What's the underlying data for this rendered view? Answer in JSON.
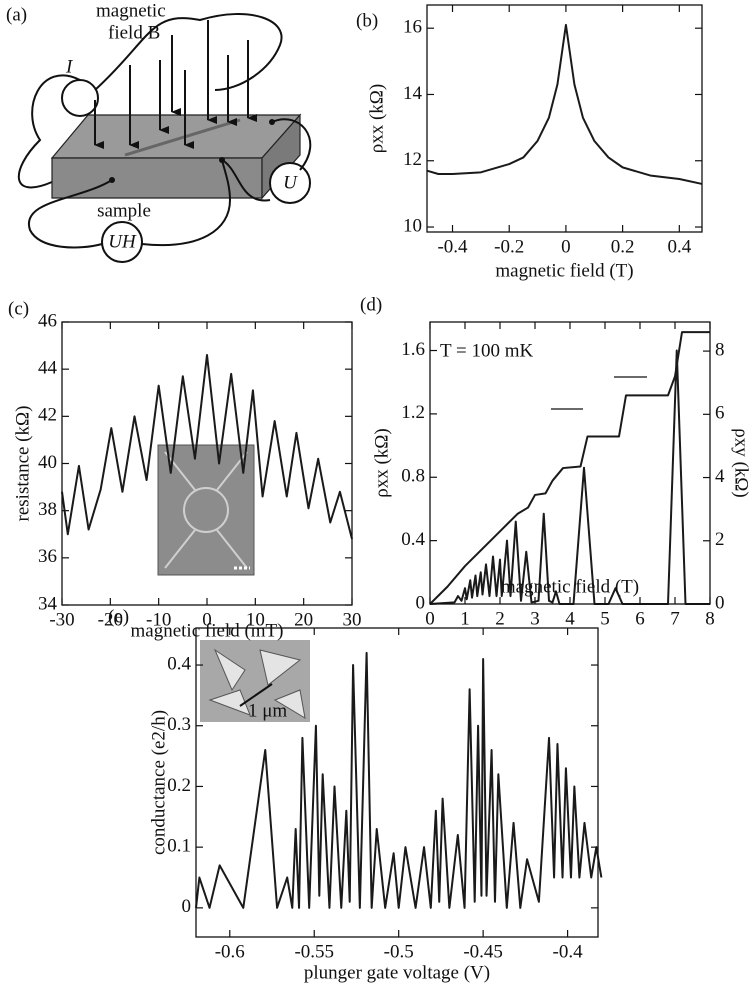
{
  "diagram": {
    "label": "(a)",
    "field_line1": "magnetic",
    "field_line2": "field B",
    "current": "I",
    "voltage": "U",
    "sample": "sample",
    "hall_voltage": "UH"
  },
  "chart_data": [
    {
      "type": "line",
      "label": "(b)",
      "xlabel": "magnetic field (T)",
      "ylabel": "ρxx (kΩ)",
      "color": "#1a1a1a",
      "x": [
        -0.49,
        -0.45,
        -0.4,
        -0.3,
        -0.2,
        -0.15,
        -0.1,
        -0.06,
        -0.03,
        -0.01,
        0,
        0.01,
        0.03,
        0.06,
        0.1,
        0.15,
        0.2,
        0.3,
        0.4,
        0.48
      ],
      "values": [
        11.7,
        11.6,
        11.6,
        11.65,
        11.9,
        12.1,
        12.6,
        13.3,
        14.3,
        15.5,
        16.1,
        15.5,
        14.3,
        13.3,
        12.6,
        12.1,
        11.8,
        11.55,
        11.45,
        11.3
      ],
      "xlim": [
        -0.49,
        0.48
      ],
      "ylim": [
        9.85,
        16.7
      ],
      "xticks": [
        -0.4,
        -0.2,
        0,
        0.2,
        0.4
      ],
      "yticks": [
        10,
        12,
        14,
        16
      ]
    },
    {
      "type": "line",
      "label": "(c)",
      "xlabel": "magnetic field (mT)",
      "ylabel": "resistance (kΩ)",
      "color": "#1a1a1a",
      "x": [
        -30,
        -28.8,
        -26.5,
        -24.5,
        -22,
        -19.8,
        -17.5,
        -15,
        -12.5,
        -10,
        -7.5,
        -5,
        -2.5,
        0,
        2.5,
        5,
        7.5,
        9.5,
        11.5,
        14,
        16.5,
        18.5,
        21,
        23,
        25.5,
        27.5,
        30
      ],
      "values": [
        38.8,
        37.0,
        39.9,
        37.2,
        38.9,
        41.5,
        38.8,
        42.0,
        39.3,
        43.3,
        39.6,
        43.7,
        40.2,
        44.6,
        40.0,
        43.8,
        39.6,
        43.1,
        38.6,
        41.8,
        38.6,
        41.3,
        38.1,
        40.2,
        37.5,
        38.8,
        36.8
      ],
      "xlim": [
        -30,
        30
      ],
      "ylim": [
        34,
        46
      ],
      "xticks": [
        -30,
        -20,
        -10,
        0,
        10,
        20,
        30
      ],
      "yticks": [
        34,
        36,
        38,
        40,
        42,
        44,
        46
      ]
    },
    {
      "type": "line",
      "label": "(d)",
      "xlabel": "magnetic field (T)",
      "ylabel": "ρxx (kΩ)",
      "y2label": "ρxy (kΩ)",
      "annotation": "T = 100 mK",
      "series": [
        {
          "color": "#1a1a1a",
          "x": [
            0,
            0.7,
            0.8,
            0.9,
            1.0,
            1.05,
            1.15,
            1.2,
            1.3,
            1.35,
            1.45,
            1.5,
            1.6,
            1.7,
            1.8,
            1.9,
            2.0,
            2.05,
            2.2,
            2.3,
            2.45,
            2.6,
            2.75,
            2.9,
            3.1,
            3.25,
            3.4,
            3.5,
            3.6,
            3.7,
            4.1,
            4.4,
            4.7,
            5.1,
            5.3,
            5.5,
            6.8,
            7.05,
            7.3,
            8
          ],
          "values": [
            0,
            0.01,
            0.05,
            0.02,
            0.1,
            0.03,
            0.15,
            0.04,
            0.18,
            0.05,
            0.2,
            0.06,
            0.25,
            0.05,
            0.3,
            0.05,
            0.28,
            0.05,
            0.4,
            0.05,
            0.52,
            0.02,
            0.33,
            0.01,
            0.02,
            0.57,
            0.02,
            0.01,
            0.08,
            0,
            0,
            0.86,
            0,
            0,
            0.1,
            0,
            0,
            1.6,
            0,
            0
          ]
        },
        {
          "color": "#1a1a1a",
          "axis": "y2",
          "x": [
            0,
            0.5,
            1,
            1.5,
            2,
            2.5,
            2.8,
            3,
            3.3,
            3.5,
            3.8,
            4.3,
            4.5,
            5.4,
            5.6,
            6.8,
            7.0,
            7.2,
            8
          ],
          "values": [
            0,
            0.55,
            1.2,
            1.75,
            2.3,
            2.85,
            3.05,
            3.45,
            3.5,
            3.9,
            4.3,
            4.35,
            5.3,
            5.3,
            6.6,
            6.6,
            7.2,
            8.6,
            8.6
          ]
        }
      ],
      "xlim": [
        0,
        8
      ],
      "ylim": [
        0,
        1.78
      ],
      "y2lim": [
        0,
        8.92
      ],
      "xticks": [
        0,
        1,
        2,
        3,
        4,
        5,
        6,
        7,
        8
      ],
      "yticks": [
        0,
        0.4,
        0.8,
        1.2,
        1.6
      ],
      "y2ticks": [
        0,
        2,
        4,
        6,
        8
      ]
    },
    {
      "type": "line",
      "label": "(e)",
      "xlabel": "plunger gate voltage (V)",
      "ylabel": "conductance (e2/h)",
      "inset_label": "1 μm",
      "color": "#1a1a1a",
      "x": [
        -0.62,
        -0.618,
        -0.612,
        -0.606,
        -0.592,
        -0.579,
        -0.572,
        -0.566,
        -0.563,
        -0.561,
        -0.559,
        -0.557,
        -0.553,
        -0.549,
        -0.547,
        -0.545,
        -0.541,
        -0.538,
        -0.534,
        -0.531,
        -0.529,
        -0.527,
        -0.523,
        -0.519,
        -0.516,
        -0.513,
        -0.508,
        -0.503,
        -0.5,
        -0.496,
        -0.49,
        -0.485,
        -0.481,
        -0.478,
        -0.476,
        -0.474,
        -0.47,
        -0.465,
        -0.461,
        -0.458,
        -0.455,
        -0.453,
        -0.451,
        -0.45,
        -0.448,
        -0.445,
        -0.443,
        -0.441,
        -0.436,
        -0.432,
        -0.428,
        -0.424,
        -0.417,
        -0.411,
        -0.408,
        -0.406,
        -0.403,
        -0.401,
        -0.398,
        -0.396,
        -0.393,
        -0.39,
        -0.386,
        -0.383,
        -0.38
      ],
      "values": [
        0,
        0.05,
        0,
        0.07,
        0,
        0.26,
        0,
        0.05,
        0,
        0.13,
        0,
        0.28,
        0,
        0.3,
        0.02,
        0.22,
        0,
        0.2,
        0,
        0.16,
        0.01,
        0.4,
        0,
        0.42,
        0,
        0.13,
        0,
        0.09,
        0,
        0.1,
        0,
        0.1,
        0,
        0.16,
        0.01,
        0.18,
        0,
        0.12,
        0,
        0.36,
        0.01,
        0.3,
        0.02,
        0.41,
        0.02,
        0.26,
        0.01,
        0.22,
        0,
        0.14,
        0,
        0.08,
        0.01,
        0.28,
        0.05,
        0.27,
        0.05,
        0.23,
        0.05,
        0.2,
        0.05,
        0.14,
        0.05,
        0.1,
        0.05
      ],
      "xlim": [
        -0.62,
        -0.382
      ],
      "ylim": [
        -0.048,
        0.461
      ],
      "xticks": [
        -0.6,
        -0.55,
        -0.5,
        -0.45,
        -0.4
      ],
      "yticks": [
        0,
        0.1,
        0.2,
        0.3,
        0.4
      ]
    }
  ]
}
